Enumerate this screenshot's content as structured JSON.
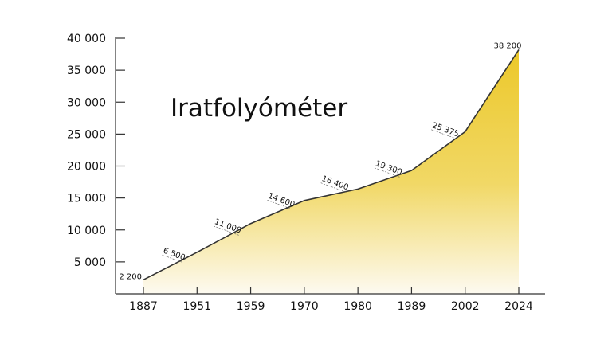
{
  "chart_data": {
    "type": "area",
    "title": "Iratfolyóméter",
    "xlabel": "",
    "ylabel": "",
    "categories": [
      "1887",
      "1951",
      "1959",
      "1970",
      "1980",
      "1989",
      "2002",
      "2024"
    ],
    "values": [
      2200,
      6500,
      11000,
      14600,
      16400,
      19300,
      25375,
      38200
    ],
    "data_labels": [
      "2 200",
      "6 500",
      "11 000",
      "14 600",
      "16 400",
      "19 300",
      "25 375",
      "38 200"
    ],
    "yticks": [
      5000,
      10000,
      15000,
      20000,
      25000,
      30000,
      35000,
      40000
    ],
    "ytick_labels": [
      "5 000",
      "10 000",
      "15 000",
      "20 000",
      "25 000",
      "30 000",
      "35 000",
      "40 000"
    ],
    "ylim": [
      0,
      40000
    ],
    "grid": false,
    "colors": {
      "fill_top": "#ecc82a",
      "fill_bottom": "#fdfaf0",
      "line": "#333333",
      "axis": "#333333"
    }
  }
}
